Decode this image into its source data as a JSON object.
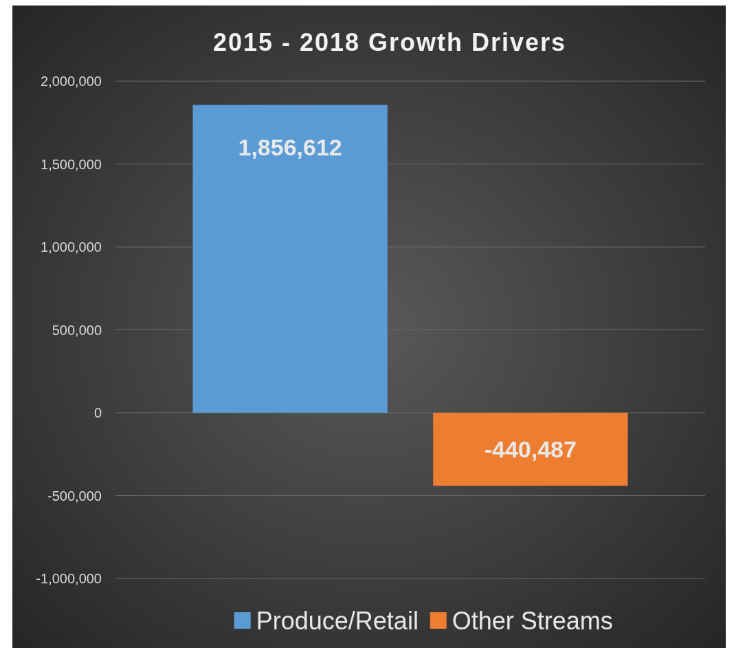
{
  "chart_data": {
    "type": "bar",
    "title": "2015 - 2018 Growth Drivers",
    "categories": [
      null
    ],
    "series": [
      {
        "name": "Produce/Retail",
        "color": "#5b9bd5",
        "values": [
          1856612
        ],
        "value_labels": [
          "1,856,612"
        ]
      },
      {
        "name": "Other Streams",
        "color": "#ed7d31",
        "values": [
          -440487
        ],
        "value_labels": [
          "-440,487"
        ]
      }
    ],
    "ylim": [
      -1000000,
      2000000
    ],
    "yticks": [
      {
        "value": -1000000,
        "label": "-1,000,000"
      },
      {
        "value": -500000,
        "label": "-500,000"
      },
      0,
      {
        "value": 500000,
        "label": "500,000"
      },
      {
        "value": 1000000,
        "label": "1,000,000"
      },
      {
        "value": 1500000,
        "label": "1,500,000"
      },
      {
        "value": 2000000,
        "label": "2,000,000"
      }
    ],
    "grid": "y",
    "legend": "bottom"
  }
}
